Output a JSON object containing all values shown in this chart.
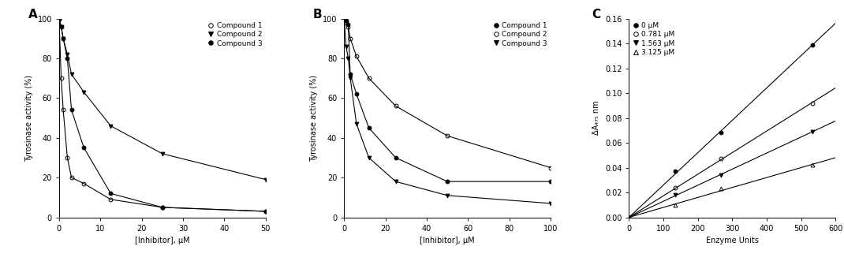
{
  "panel_A": {
    "title": "A",
    "xlabel": "[Inhibitor], μM",
    "ylabel": "Tyrosinase activity (%)",
    "xlim": [
      0,
      50
    ],
    "ylim": [
      0,
      100
    ],
    "xticks": [
      0,
      10,
      20,
      30,
      40,
      50
    ],
    "yticks": [
      0,
      20,
      40,
      60,
      80,
      100
    ],
    "compound1": {
      "x": [
        0,
        0.5,
        1,
        2,
        3,
        6,
        12.5,
        25,
        50
      ],
      "y": [
        100,
        70,
        54,
        30,
        20,
        17,
        9,
        5,
        3
      ],
      "marker": "o",
      "fillstyle": "none",
      "label": "Compound 1"
    },
    "compound2": {
      "x": [
        0,
        0.5,
        1,
        2,
        3,
        6,
        12.5,
        25,
        50
      ],
      "y": [
        100,
        96,
        90,
        82,
        72,
        63,
        46,
        32,
        19
      ],
      "marker": "v",
      "fillstyle": "full",
      "label": "Compound 2"
    },
    "compound3": {
      "x": [
        0,
        0.5,
        1,
        2,
        3,
        6,
        12.5,
        25,
        50
      ],
      "y": [
        100,
        96,
        90,
        80,
        54,
        35,
        12,
        5,
        3
      ],
      "marker": "o",
      "fillstyle": "full",
      "label": "Compound 3"
    }
  },
  "panel_B": {
    "title": "B",
    "xlabel": "[Inhibitor], μM",
    "ylabel": "Tyrosinase activity (%)",
    "xlim": [
      0,
      100
    ],
    "ylim": [
      0,
      100
    ],
    "xticks": [
      0,
      20,
      40,
      60,
      80,
      100
    ],
    "yticks": [
      0,
      20,
      40,
      60,
      80,
      100
    ],
    "compound1": {
      "x": [
        0,
        1,
        2,
        3,
        6,
        12,
        25,
        50,
        100
      ],
      "y": [
        100,
        99,
        97,
        72,
        62,
        45,
        30,
        18,
        18
      ],
      "marker": "o",
      "fillstyle": "full",
      "label": "Compound 1"
    },
    "compound2": {
      "x": [
        0,
        1,
        2,
        3,
        6,
        12,
        25,
        50,
        100
      ],
      "y": [
        100,
        98,
        96,
        90,
        81,
        70,
        56,
        41,
        25
      ],
      "marker": "o",
      "fillstyle": "none",
      "label": "Compound 2"
    },
    "compound3": {
      "x": [
        0,
        1,
        2,
        3,
        6,
        12,
        25,
        50,
        100
      ],
      "y": [
        100,
        86,
        80,
        70,
        47,
        30,
        18,
        11,
        7
      ],
      "marker": "v",
      "fillstyle": "full",
      "label": "Compound 3"
    }
  },
  "panel_C": {
    "title": "C",
    "xlabel": "Enzyme Units",
    "ylabel": "ΔA₄₇₅ nm",
    "xlim": [
      0,
      600
    ],
    "ylim": [
      0,
      0.16
    ],
    "xticks": [
      0,
      100,
      200,
      300,
      400,
      500,
      600
    ],
    "yticks": [
      0.0,
      0.02,
      0.04,
      0.06,
      0.08,
      0.1,
      0.12,
      0.14,
      0.16
    ],
    "series": [
      {
        "label": "0 μM",
        "x": [
          0,
          133,
          267,
          533
        ],
        "y": [
          0,
          0.037,
          0.068,
          0.139
        ],
        "marker": "o",
        "fillstyle": "full"
      },
      {
        "label": "0.781 μM",
        "x": [
          0,
          133,
          267,
          533
        ],
        "y": [
          0,
          0.024,
          0.047,
          0.092
        ],
        "marker": "o",
        "fillstyle": "none"
      },
      {
        "label": "1.563 μM",
        "x": [
          0,
          133,
          267,
          533
        ],
        "y": [
          0,
          0.018,
          0.034,
          0.069
        ],
        "marker": "v",
        "fillstyle": "full"
      },
      {
        "label": "3.125 μM",
        "x": [
          0,
          133,
          267,
          533
        ],
        "y": [
          0,
          0.01,
          0.023,
          0.042
        ],
        "marker": "^",
        "fillstyle": "none"
      }
    ]
  },
  "fontsize": 7
}
